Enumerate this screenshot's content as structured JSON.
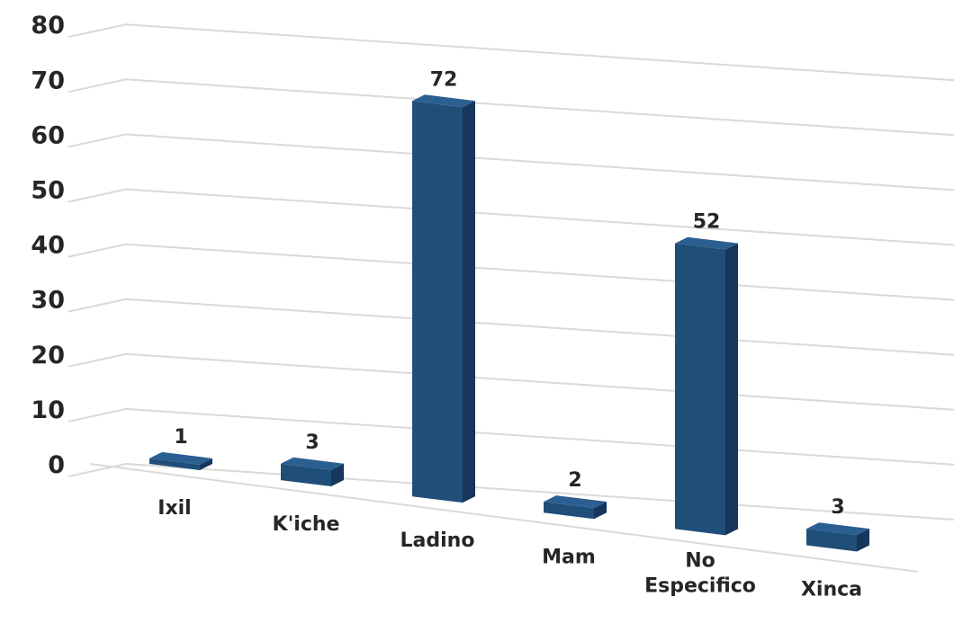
{
  "chart_data": {
    "type": "bar",
    "style": "3d-column",
    "categories": [
      "Ixil",
      "K'iche",
      "Ladino",
      "Mam",
      "No Especifico",
      "Xinca"
    ],
    "category_lines": [
      [
        "Ixil"
      ],
      [
        "K'iche"
      ],
      [
        "Ladino"
      ],
      [
        "Mam"
      ],
      [
        "No",
        "Especifico"
      ],
      [
        "Xinca"
      ]
    ],
    "values": [
      1,
      3,
      72,
      2,
      52,
      3
    ],
    "data_labels": [
      "1",
      "3",
      "72",
      "2",
      "52",
      "3"
    ],
    "yticks": [
      "0",
      "10",
      "20",
      "30",
      "40",
      "50",
      "60",
      "70",
      "80"
    ],
    "ylim": [
      0,
      80
    ],
    "grid": true,
    "legend": "none",
    "colors": {
      "bar_front": "#1f4e79",
      "bar_side": "#16365c",
      "bar_top": "#2b5f91",
      "grid": "#d9d9d9",
      "text": "#262626"
    }
  }
}
